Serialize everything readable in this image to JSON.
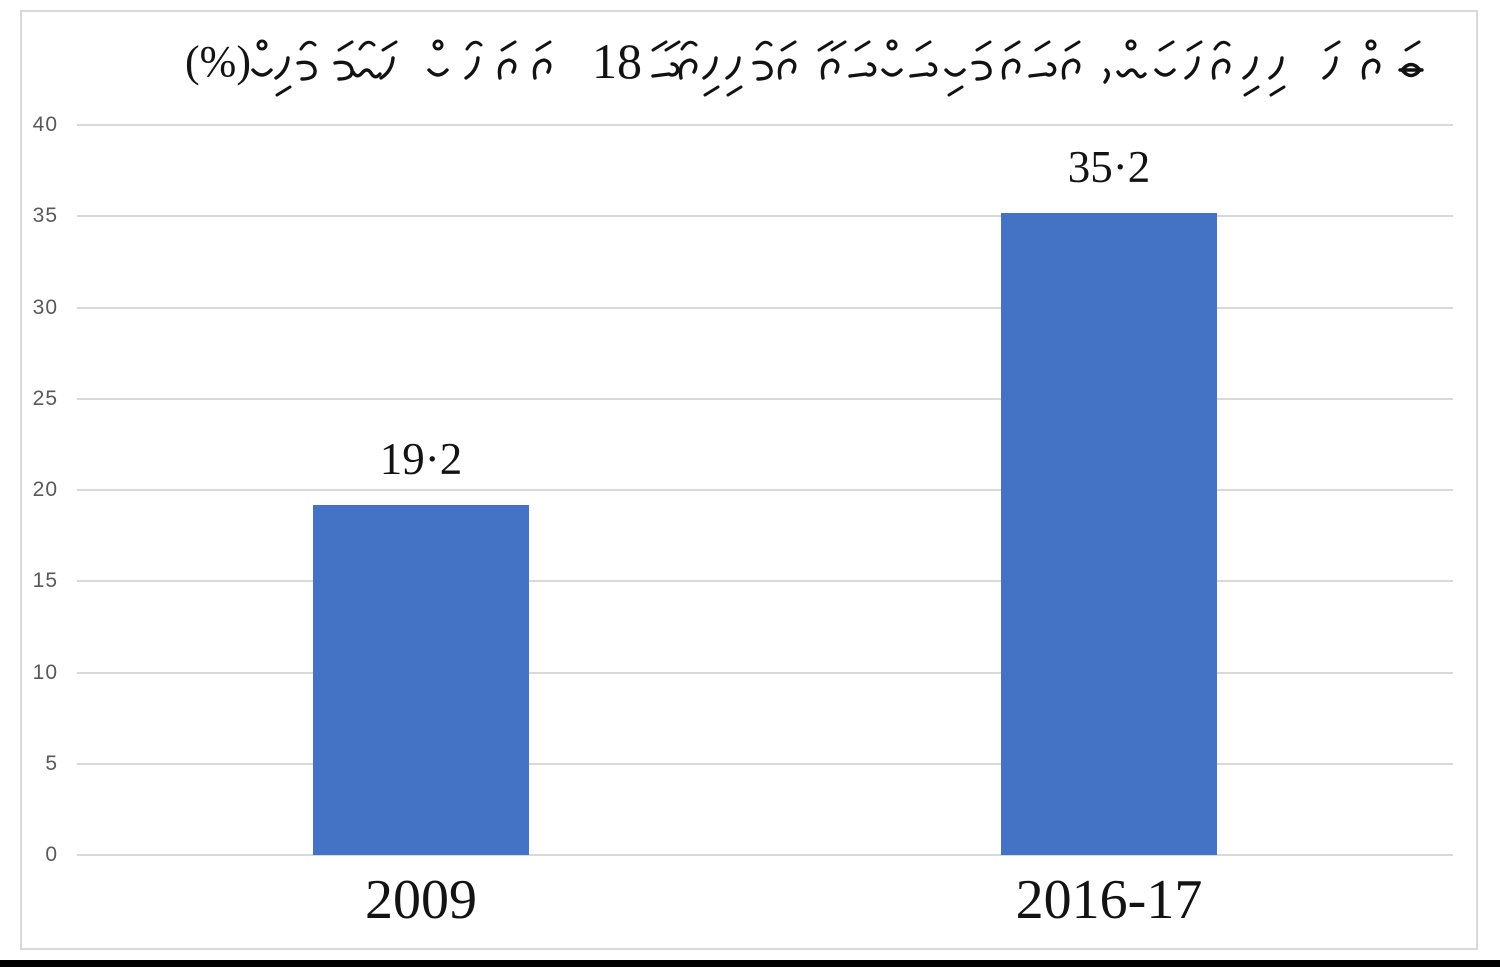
{
  "page": {
    "background": "#ffffff",
    "frame_border_color": "#d9d9d9",
    "bottom_rule_color": "#000000"
  },
  "title": {
    "text": "ބައްޕަ ދިރިހުރެޔަސް، ހަމައެކަނި މަންމައާ އެކު ދިރިއުޅޭ 18 އަހަރުން ދަށުގެ ކުދިން (%)",
    "script": "thaana",
    "direction": "rtl",
    "number": "18",
    "percent_suffix": "(%)"
  },
  "chart_data": {
    "type": "bar",
    "title": "ބައްޕަ ދިރިހުރެޔަސް، ހަމައެކަނި މަންމައާ އެކު ދިރިއުޅޭ 18 އަހަރުން ދަށުގެ ކުދިން (%)",
    "categories": [
      "2009",
      "2016-17"
    ],
    "values": [
      19.2,
      35.2
    ],
    "value_labels": [
      "19·2",
      "35·2"
    ],
    "xlabel": "",
    "ylabel": "",
    "ylim": [
      0,
      40
    ],
    "yticks": [
      0,
      5,
      10,
      15,
      20,
      25,
      30,
      35,
      40
    ],
    "grid": true,
    "legend": false,
    "bar_color": "#4472c4",
    "gridline_color": "#d9d9d9",
    "tick_label_color": "#595959",
    "label_color": "#131313"
  }
}
